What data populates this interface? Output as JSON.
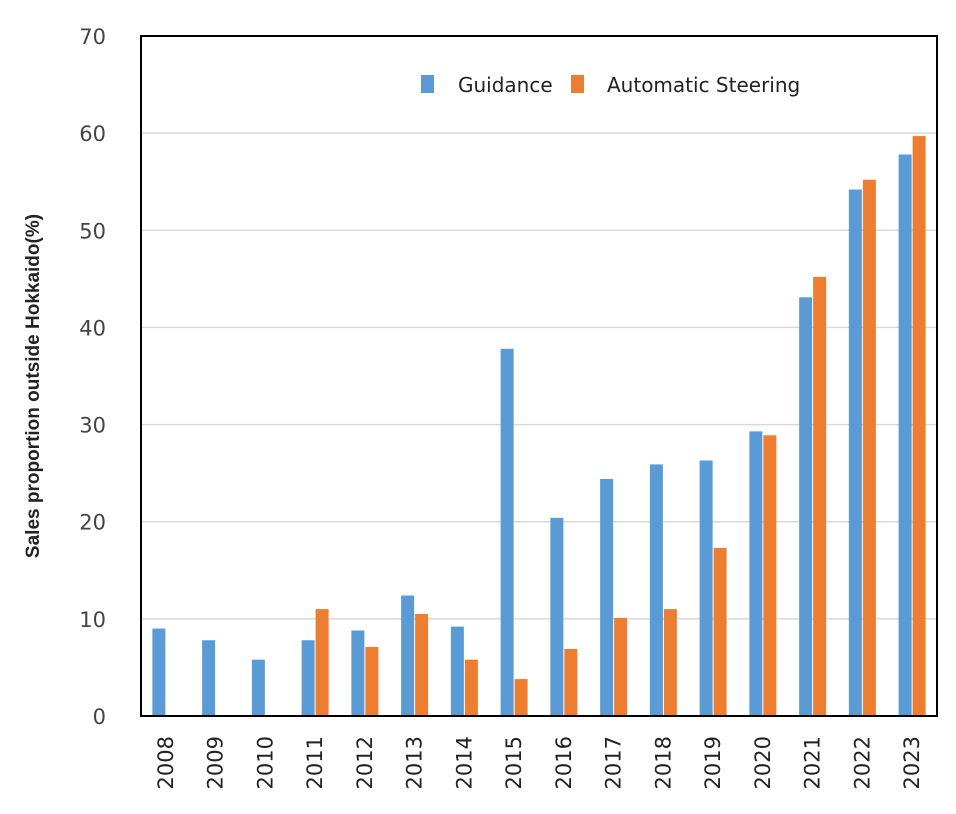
{
  "chart_data": {
    "type": "bar",
    "title": "",
    "xlabel": "",
    "ylabel": "Sales proportion outside Hokkaido(%)",
    "ylim": [
      0,
      70
    ],
    "yticks": [
      0,
      10,
      20,
      30,
      40,
      50,
      60,
      70
    ],
    "grid": true,
    "legend_position": "top-right",
    "categories": [
      "2008",
      "2009",
      "2010",
      "2011",
      "2012",
      "2013",
      "2014",
      "2015",
      "2016",
      "2017",
      "2018",
      "2019",
      "2020",
      "2021",
      "2022",
      "2023"
    ],
    "series": [
      {
        "name": "Guidance",
        "color": "#5B9BD5",
        "values": [
          9.0,
          7.8,
          5.8,
          7.8,
          8.8,
          12.4,
          9.2,
          37.8,
          20.4,
          24.4,
          25.9,
          26.3,
          29.3,
          43.1,
          54.2,
          57.8
        ]
      },
      {
        "name": "Automatic Steering",
        "color": "#ED7D31",
        "values": [
          null,
          null,
          null,
          11.0,
          7.1,
          10.5,
          5.8,
          3.8,
          6.9,
          10.1,
          11.0,
          17.3,
          28.9,
          45.2,
          55.2,
          59.7
        ]
      }
    ]
  }
}
